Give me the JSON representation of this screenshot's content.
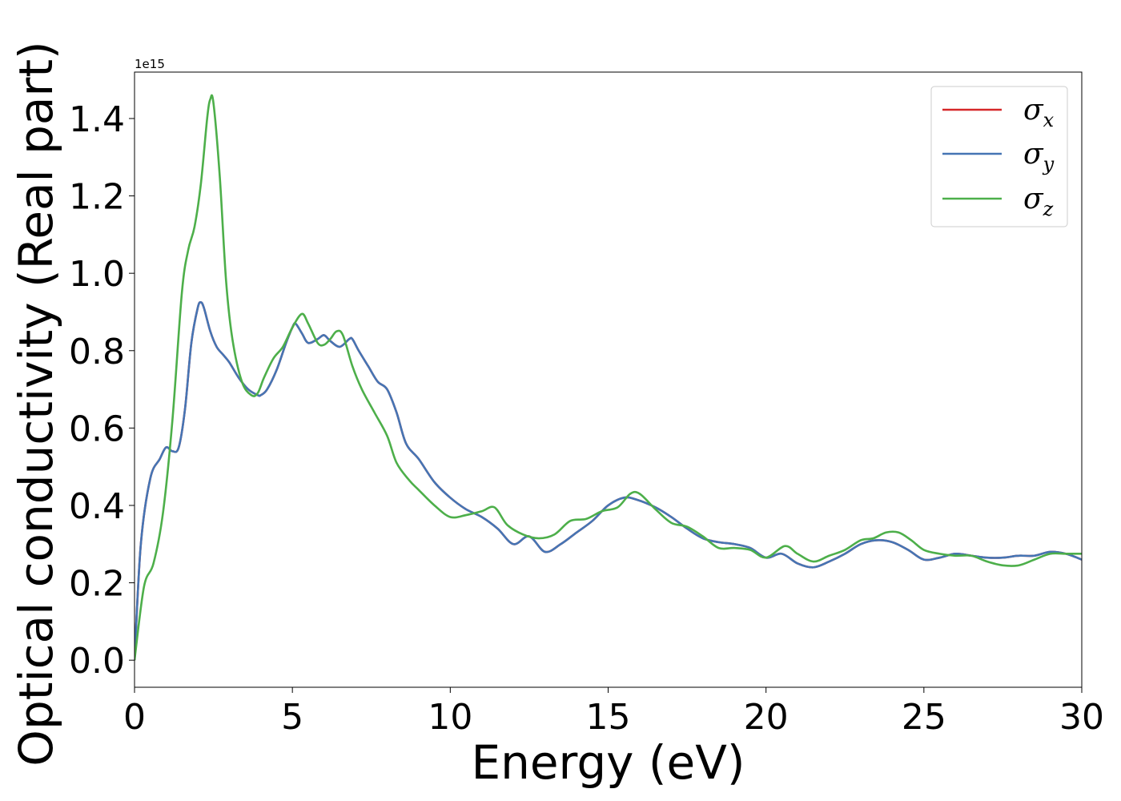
{
  "chart_data": {
    "type": "line",
    "xlabel": "Energy (eV)",
    "ylabel": "Optical conductivity (Real part)",
    "y_offset_label": "1e15",
    "xlim": [
      0,
      30
    ],
    "ylim": [
      -0.07,
      1.52
    ],
    "xticks": [
      0,
      5,
      10,
      15,
      20,
      25,
      30
    ],
    "yticks": [
      0.0,
      0.2,
      0.4,
      0.6,
      0.8,
      1.0,
      1.2,
      1.4
    ],
    "xtick_labels": [
      "0",
      "5",
      "10",
      "15",
      "20",
      "25",
      "30"
    ],
    "ytick_labels": [
      "0.0",
      "0.2",
      "0.4",
      "0.6",
      "0.8",
      "1.0",
      "1.2",
      "1.4"
    ],
    "legend": "top-right",
    "grid": false,
    "series": [
      {
        "name": "σx",
        "label_base": "σ",
        "label_sub": "x",
        "color": "#d62728",
        "x": [
          0,
          0.2,
          0.5,
          0.8,
          1.0,
          1.2,
          1.4,
          1.6,
          1.8,
          2.0,
          2.1,
          2.2,
          2.4,
          2.6,
          2.8,
          3.0,
          3.3,
          3.6,
          3.9,
          4.0,
          4.2,
          4.5,
          4.8,
          5.0,
          5.1,
          5.3,
          5.5,
          5.8,
          6.0,
          6.2,
          6.5,
          6.8,
          6.9,
          7.1,
          7.4,
          7.7,
          8.0,
          8.3,
          8.6,
          9.0,
          9.5,
          10.0,
          10.5,
          11.0,
          11.5,
          12.0,
          12.5,
          13.0,
          13.5,
          14.0,
          14.5,
          15.0,
          15.5,
          15.9,
          16.5,
          17.0,
          17.5,
          18.0,
          18.5,
          19.0,
          19.5,
          20.0,
          20.5,
          21.0,
          21.5,
          22.0,
          22.5,
          23.0,
          23.5,
          24.0,
          24.5,
          25.0,
          25.5,
          26.0,
          26.5,
          27.0,
          27.5,
          28.0,
          28.5,
          29.0,
          29.5,
          30.0
        ],
        "y": [
          0.0,
          0.3,
          0.47,
          0.52,
          0.55,
          0.54,
          0.55,
          0.65,
          0.82,
          0.91,
          0.925,
          0.91,
          0.85,
          0.81,
          0.79,
          0.77,
          0.73,
          0.7,
          0.685,
          0.685,
          0.7,
          0.75,
          0.82,
          0.86,
          0.87,
          0.845,
          0.82,
          0.83,
          0.84,
          0.825,
          0.81,
          0.83,
          0.83,
          0.8,
          0.76,
          0.72,
          0.7,
          0.64,
          0.56,
          0.52,
          0.46,
          0.42,
          0.39,
          0.37,
          0.34,
          0.3,
          0.32,
          0.28,
          0.3,
          0.33,
          0.36,
          0.4,
          0.42,
          0.415,
          0.395,
          0.37,
          0.34,
          0.315,
          0.305,
          0.3,
          0.29,
          0.265,
          0.275,
          0.25,
          0.24,
          0.255,
          0.275,
          0.3,
          0.31,
          0.305,
          0.285,
          0.26,
          0.265,
          0.275,
          0.27,
          0.265,
          0.265,
          0.27,
          0.27,
          0.28,
          0.275,
          0.26
        ]
      },
      {
        "name": "σy",
        "label_base": "σ",
        "label_sub": "y",
        "color": "#4575b4",
        "x": [
          0,
          0.2,
          0.5,
          0.8,
          1.0,
          1.2,
          1.4,
          1.6,
          1.8,
          2.0,
          2.1,
          2.2,
          2.4,
          2.6,
          2.8,
          3.0,
          3.3,
          3.6,
          3.9,
          4.0,
          4.2,
          4.5,
          4.8,
          5.0,
          5.1,
          5.3,
          5.5,
          5.8,
          6.0,
          6.2,
          6.5,
          6.8,
          6.9,
          7.1,
          7.4,
          7.7,
          8.0,
          8.3,
          8.6,
          9.0,
          9.5,
          10.0,
          10.5,
          11.0,
          11.5,
          12.0,
          12.5,
          13.0,
          13.5,
          14.0,
          14.5,
          15.0,
          15.5,
          15.9,
          16.5,
          17.0,
          17.5,
          18.0,
          18.5,
          19.0,
          19.5,
          20.0,
          20.5,
          21.0,
          21.5,
          22.0,
          22.5,
          23.0,
          23.5,
          24.0,
          24.5,
          25.0,
          25.5,
          26.0,
          26.5,
          27.0,
          27.5,
          28.0,
          28.5,
          29.0,
          29.5,
          30.0
        ],
        "y": [
          0.0,
          0.3,
          0.47,
          0.52,
          0.55,
          0.54,
          0.55,
          0.65,
          0.82,
          0.91,
          0.925,
          0.91,
          0.85,
          0.81,
          0.79,
          0.77,
          0.73,
          0.7,
          0.685,
          0.685,
          0.7,
          0.75,
          0.82,
          0.86,
          0.87,
          0.845,
          0.82,
          0.83,
          0.84,
          0.825,
          0.81,
          0.83,
          0.83,
          0.8,
          0.76,
          0.72,
          0.7,
          0.64,
          0.56,
          0.52,
          0.46,
          0.42,
          0.39,
          0.37,
          0.34,
          0.3,
          0.32,
          0.28,
          0.3,
          0.33,
          0.36,
          0.4,
          0.42,
          0.415,
          0.395,
          0.37,
          0.34,
          0.315,
          0.305,
          0.3,
          0.29,
          0.265,
          0.275,
          0.25,
          0.24,
          0.255,
          0.275,
          0.3,
          0.31,
          0.305,
          0.285,
          0.26,
          0.265,
          0.275,
          0.27,
          0.265,
          0.265,
          0.27,
          0.27,
          0.28,
          0.275,
          0.26
        ]
      },
      {
        "name": "σz",
        "label_base": "σ",
        "label_sub": "z",
        "color": "#4daf4a",
        "x": [
          0,
          0.3,
          0.6,
          0.9,
          1.2,
          1.5,
          1.7,
          1.9,
          2.1,
          2.3,
          2.4,
          2.5,
          2.7,
          2.9,
          3.1,
          3.4,
          3.7,
          3.9,
          4.1,
          4.4,
          4.7,
          5.0,
          5.3,
          5.5,
          5.8,
          6.0,
          6.2,
          6.4,
          6.6,
          6.9,
          7.2,
          7.6,
          8.0,
          8.3,
          8.7,
          9.0,
          9.5,
          10.0,
          10.5,
          11.0,
          11.4,
          11.8,
          12.3,
          12.8,
          13.3,
          13.8,
          14.3,
          14.8,
          15.3,
          15.7,
          16.0,
          16.5,
          17.0,
          17.5,
          18.0,
          18.5,
          19.0,
          19.5,
          20.0,
          20.6,
          21.0,
          21.5,
          22.0,
          22.5,
          23.0,
          23.4,
          23.8,
          24.2,
          24.6,
          25.0,
          25.5,
          26.0,
          26.5,
          27.0,
          27.5,
          28.0,
          28.5,
          29.0,
          29.5,
          30.0
        ],
        "y": [
          0.0,
          0.19,
          0.25,
          0.38,
          0.62,
          0.95,
          1.06,
          1.12,
          1.23,
          1.4,
          1.45,
          1.44,
          1.25,
          0.98,
          0.83,
          0.72,
          0.685,
          0.69,
          0.73,
          0.78,
          0.81,
          0.86,
          0.895,
          0.87,
          0.82,
          0.815,
          0.83,
          0.85,
          0.84,
          0.76,
          0.7,
          0.64,
          0.58,
          0.51,
          0.465,
          0.44,
          0.4,
          0.37,
          0.375,
          0.385,
          0.395,
          0.35,
          0.325,
          0.315,
          0.325,
          0.36,
          0.365,
          0.385,
          0.395,
          0.43,
          0.43,
          0.39,
          0.355,
          0.345,
          0.32,
          0.29,
          0.29,
          0.285,
          0.265,
          0.295,
          0.275,
          0.255,
          0.27,
          0.285,
          0.31,
          0.315,
          0.33,
          0.33,
          0.31,
          0.285,
          0.275,
          0.27,
          0.27,
          0.255,
          0.245,
          0.245,
          0.26,
          0.275,
          0.275,
          0.275
        ]
      }
    ]
  }
}
